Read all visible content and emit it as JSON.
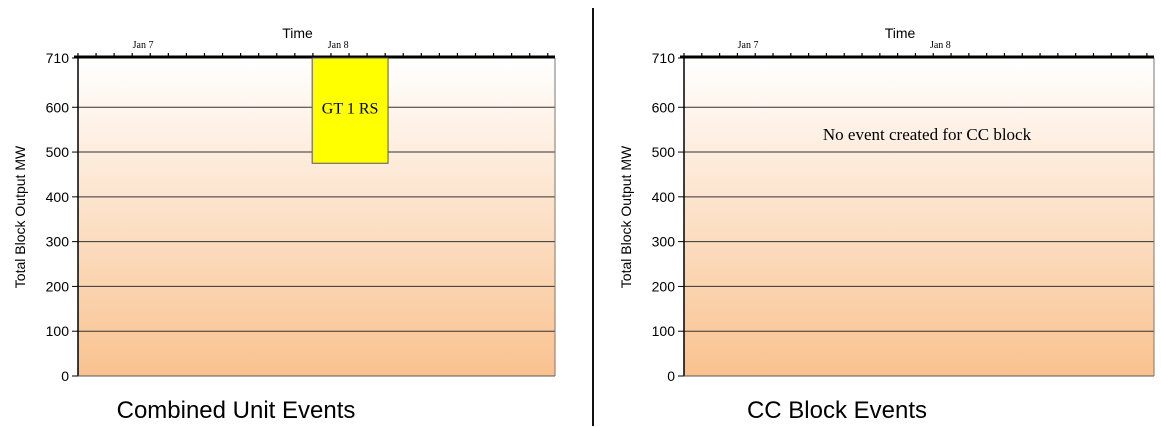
{
  "charts": [
    {
      "id": "combined",
      "caption": "Combined Unit Events",
      "annotation": ""
    },
    {
      "id": "cc",
      "caption": "CC Block Events",
      "annotation": "No event created for CC block"
    }
  ],
  "colors": {
    "gradient_top": "#ffffff",
    "gradient_bottom": "#f9c28f",
    "gridline": "#333333",
    "event_fill": "#ffff00",
    "event_stroke": "#555555"
  },
  "chart_data": [
    {
      "type": "bar",
      "title": "Combined Unit Events",
      "xlabel": "Time",
      "ylabel": "Total Block Output MW",
      "ylim": [
        0,
        710
      ],
      "yticks": [
        0,
        100,
        200,
        300,
        400,
        500,
        600,
        710
      ],
      "x_tick_labels": [
        "Jan 7",
        "Jan 8"
      ],
      "x_label_positions_days": [
        0.1,
        1.0
      ],
      "x_range_days": [
        -0.2,
        2.0
      ],
      "events": [
        {
          "label": "GT 1 RS",
          "x_start_day": 0.88,
          "x_end_day": 1.23,
          "y_low": 475,
          "y_high": 710
        }
      ],
      "grid": true
    },
    {
      "type": "bar",
      "title": "CC Block Events",
      "xlabel": "Time",
      "ylabel": "Total Block Output MW",
      "ylim": [
        0,
        710
      ],
      "yticks": [
        0,
        100,
        200,
        300,
        400,
        500,
        600,
        710
      ],
      "x_tick_labels": [
        "Jan 7",
        "Jan 8"
      ],
      "x_label_positions_days": [
        0.1,
        1.0
      ],
      "x_range_days": [
        -0.2,
        2.0
      ],
      "events": [],
      "grid": true
    }
  ]
}
